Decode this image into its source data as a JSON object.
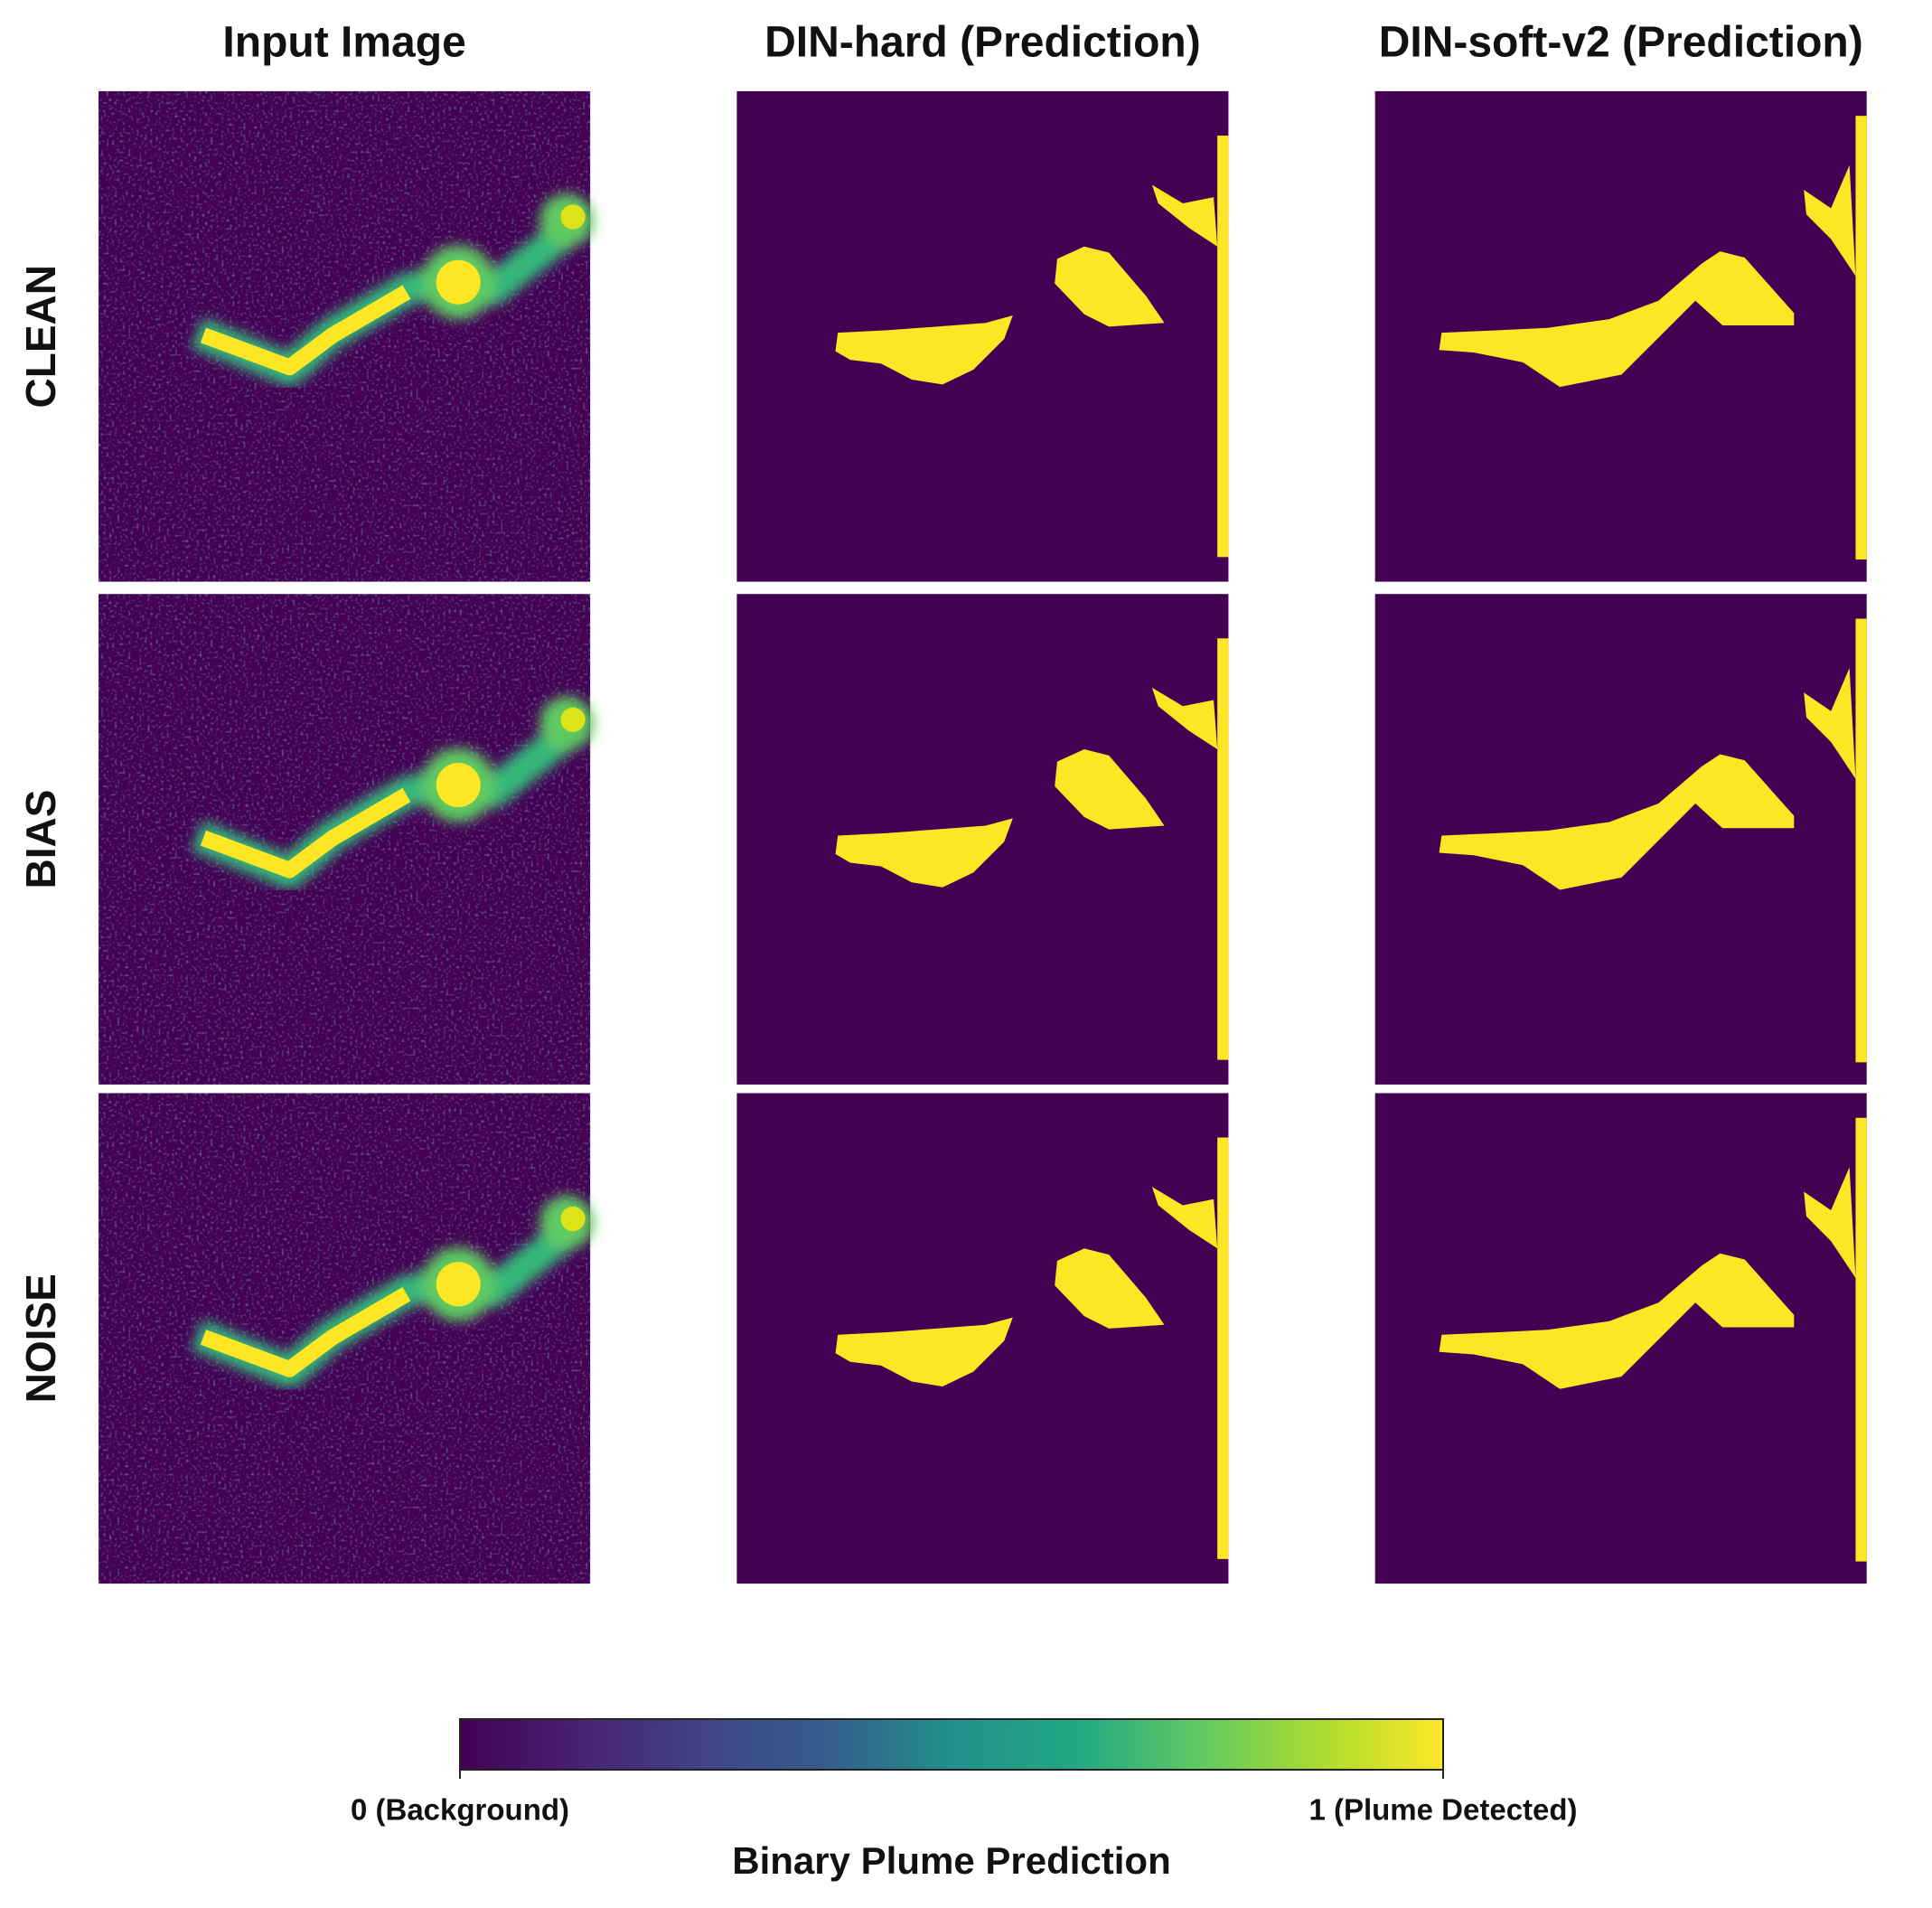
{
  "chart_data": {
    "type": "image-grid",
    "columns": [
      "Input Image",
      "DIN-hard (Prediction)",
      "DIN-soft-v2 (Prediction)"
    ],
    "rows": [
      "CLEAN",
      "BIAS",
      "NOISE"
    ],
    "colorbar": {
      "label": "Binary Plume Prediction",
      "clim": [
        0,
        1
      ],
      "ticks": [
        {
          "value": 0,
          "label": "0 (Background)"
        },
        {
          "value": 1,
          "label": "1 (Plume Detected)"
        }
      ]
    }
  }
}
